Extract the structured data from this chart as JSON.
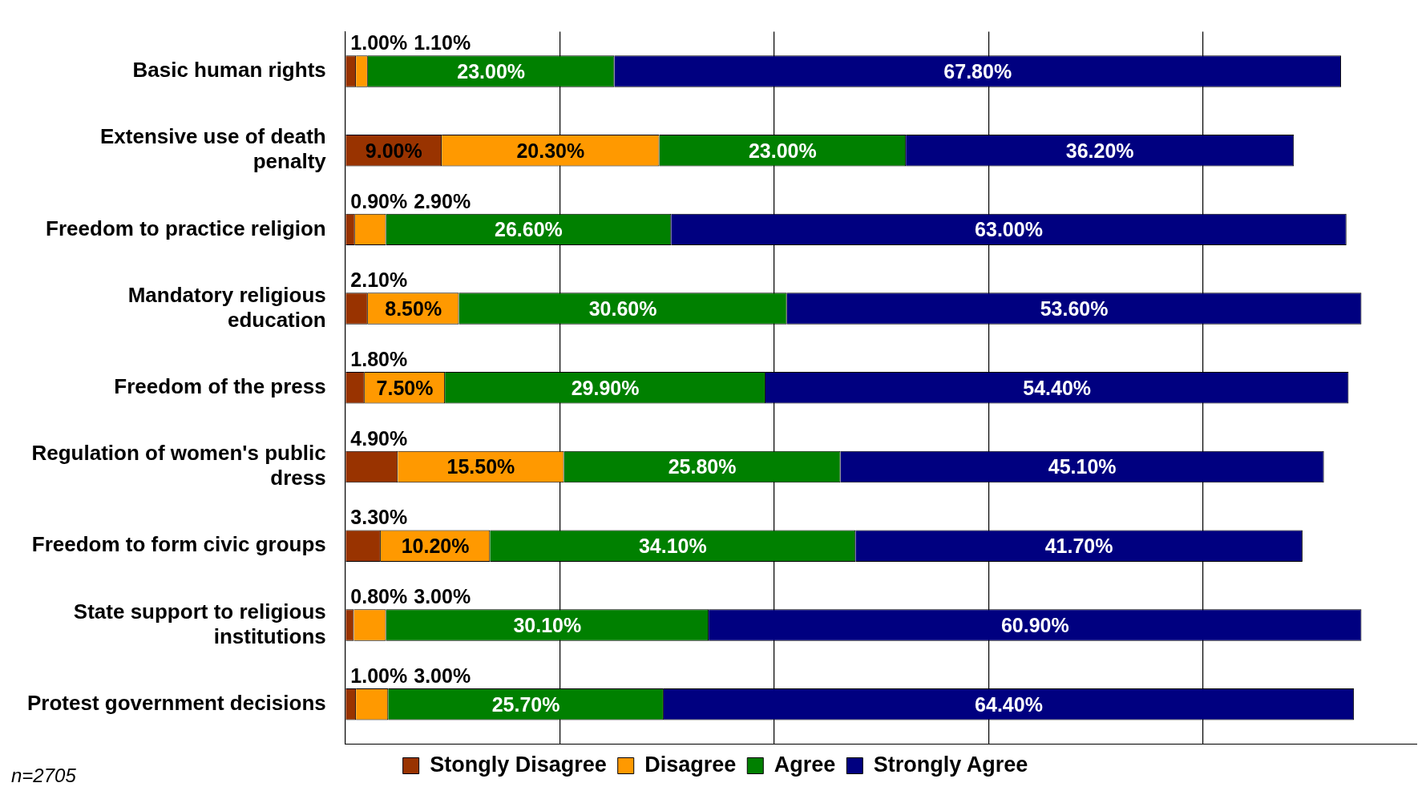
{
  "chart_data": {
    "type": "bar",
    "orientation": "horizontal",
    "stacked": true,
    "categories": [
      "Basic human rights",
      "Extensive use of death penalty",
      "Freedom to practice religion",
      "Mandatory religious education",
      "Freedom of the press",
      "Regulation of women's public dress",
      "Freedom to form civic groups",
      "State support to religious institutions",
      "Protest government decisions"
    ],
    "series": [
      {
        "name": "Stongly Disagree",
        "color": "#993300",
        "values": [
          1.0,
          9.0,
          0.9,
          2.1,
          1.8,
          4.9,
          3.3,
          0.8,
          1.0
        ],
        "value_labels": [
          "1.00%",
          "9.00%",
          "0.90%",
          "2.10%",
          "1.80%",
          "4.90%",
          "3.30%",
          "0.80%",
          "1.00%"
        ]
      },
      {
        "name": "Disagree",
        "color": "#ff9900",
        "values": [
          1.1,
          20.3,
          2.9,
          8.5,
          7.5,
          15.5,
          10.2,
          3.0,
          3.0
        ],
        "value_labels": [
          "1.10%",
          "20.30%",
          "2.90%",
          "8.50%",
          "7.50%",
          "15.50%",
          "10.20%",
          "3.00%",
          "3.00%"
        ]
      },
      {
        "name": "Agree",
        "color": "#008000",
        "values": [
          23.0,
          23.0,
          26.6,
          30.6,
          29.9,
          25.8,
          34.1,
          30.1,
          25.7
        ],
        "value_labels": [
          "23.00%",
          "23.00%",
          "26.60%",
          "30.60%",
          "29.90%",
          "25.80%",
          "34.10%",
          "30.10%",
          "25.70%"
        ]
      },
      {
        "name": "Strongly Agree",
        "color": "#000080",
        "values": [
          67.8,
          36.2,
          63.0,
          53.6,
          54.4,
          45.1,
          41.7,
          60.9,
          64.4
        ],
        "value_labels": [
          "67.80%",
          "36.20%",
          "63.00%",
          "53.60%",
          "54.40%",
          "45.10%",
          "41.70%",
          "60.90%",
          "64.40%"
        ]
      }
    ],
    "xlim": [
      0,
      100
    ],
    "xticks": [
      {
        "value": 0,
        "label": null
      },
      {
        "value": 20,
        "label": null
      },
      {
        "value": 40,
        "label": null
      },
      {
        "value": 60,
        "label": null
      },
      {
        "value": 80,
        "label": null
      }
    ],
    "grid": "x",
    "tick_labels": "y",
    "legend": "bottom",
    "annotations": [
      "n=2705"
    ]
  }
}
